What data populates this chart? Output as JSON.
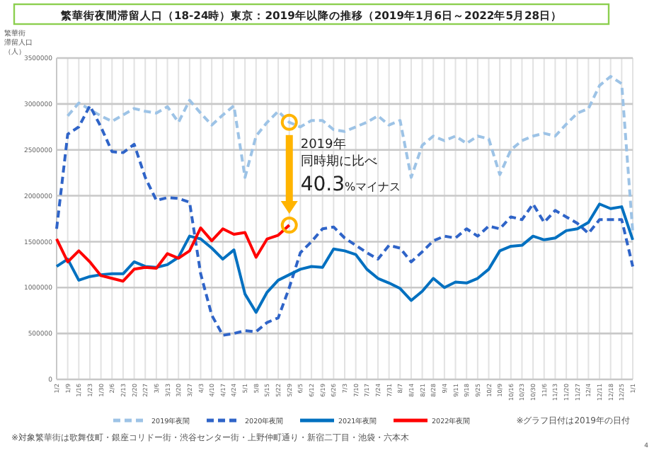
{
  "chart_data": {
    "type": "line",
    "title": "繁華街夜間滞留人口（18-24時）東京：2019年以降の推移（2019年1月6日～2022年5月28日）",
    "ylabel": "繁華街滞留人口（人）",
    "categories": [
      "1/2",
      "1/9",
      "1/16",
      "1/23",
      "1/30",
      "2/6",
      "2/13",
      "2/20",
      "2/27",
      "3/6",
      "3/13",
      "3/20",
      "3/27",
      "4/3",
      "4/10",
      "4/17",
      "4/24",
      "5/1",
      "5/8",
      "5/15",
      "5/22",
      "5/29",
      "6/5",
      "6/12",
      "6/19",
      "6/26",
      "7/3",
      "7/10",
      "7/17",
      "7/24",
      "7/31",
      "8/7",
      "8/14",
      "8/21",
      "8/28",
      "9/4",
      "9/11",
      "9/18",
      "9/25",
      "10/2",
      "10/9",
      "10/16",
      "10/23",
      "10/30",
      "11/6",
      "11/13",
      "11/20",
      "11/27",
      "12/4",
      "12/11",
      "12/18",
      "12/25",
      "1/1"
    ],
    "series": [
      {
        "name": "2019年夜間",
        "color": "#9dc3e6",
        "line_style": "dashed",
        "values": [
          null,
          2870000,
          3010000,
          2940000,
          2870000,
          2810000,
          2880000,
          2950000,
          2920000,
          2900000,
          2970000,
          2800000,
          3040000,
          2900000,
          2770000,
          2880000,
          2980000,
          2200000,
          2650000,
          2800000,
          2920000,
          2800000,
          2750000,
          2820000,
          2820000,
          2720000,
          2700000,
          2750000,
          2800000,
          2870000,
          2770000,
          2820000,
          2200000,
          2550000,
          2650000,
          2600000,
          2650000,
          2570000,
          2650000,
          2620000,
          2230000,
          2500000,
          2600000,
          2650000,
          2680000,
          2650000,
          2780000,
          2900000,
          2950000,
          3200000,
          3300000,
          3220000,
          1600000
        ]
      },
      {
        "name": "2020年夜間",
        "color": "#2f64c8",
        "line_style": "dashed",
        "values": [
          1640000,
          2670000,
          2750000,
          2980000,
          2750000,
          2480000,
          2470000,
          2560000,
          2200000,
          1950000,
          1980000,
          1970000,
          1930000,
          1150000,
          700000,
          480000,
          500000,
          530000,
          520000,
          620000,
          670000,
          1000000,
          1380000,
          1500000,
          1640000,
          1660000,
          1540000,
          1460000,
          1380000,
          1310000,
          1460000,
          1430000,
          1280000,
          1390000,
          1510000,
          1560000,
          1540000,
          1640000,
          1560000,
          1670000,
          1640000,
          1770000,
          1740000,
          1910000,
          1710000,
          1840000,
          1770000,
          1700000,
          1590000,
          1740000,
          1740000,
          1740000,
          1230000
        ]
      },
      {
        "name": "2021年夜間",
        "color": "#0070c0",
        "line_style": "solid",
        "values": [
          1230000,
          1310000,
          1080000,
          1120000,
          1140000,
          1150000,
          1150000,
          1280000,
          1230000,
          1220000,
          1250000,
          1330000,
          1560000,
          1530000,
          1430000,
          1310000,
          1410000,
          930000,
          730000,
          950000,
          1080000,
          1140000,
          1200000,
          1230000,
          1220000,
          1420000,
          1400000,
          1360000,
          1200000,
          1100000,
          1050000,
          990000,
          860000,
          960000,
          1100000,
          1000000,
          1060000,
          1050000,
          1100000,
          1200000,
          1400000,
          1450000,
          1460000,
          1560000,
          1520000,
          1540000,
          1620000,
          1640000,
          1710000,
          1910000,
          1860000,
          1880000,
          1520000
        ]
      },
      {
        "name": "2022年夜間",
        "color": "#ff0000",
        "line_style": "solid",
        "values": [
          1530000,
          1280000,
          1400000,
          1280000,
          1130000,
          1100000,
          1070000,
          1200000,
          1220000,
          1210000,
          1370000,
          1320000,
          1400000,
          1650000,
          1510000,
          1640000,
          1580000,
          1600000,
          1330000,
          1530000,
          1570000,
          1680000,
          null,
          null,
          null,
          null,
          null,
          null,
          null,
          null,
          null,
          null,
          null,
          null,
          null,
          null,
          null,
          null,
          null,
          null,
          null,
          null,
          null,
          null,
          null,
          null,
          null,
          null,
          null,
          null,
          null,
          null,
          null
        ]
      }
    ],
    "ylim": [
      0,
      3500000
    ],
    "yticks": [
      0,
      500000,
      1000000,
      1500000,
      2000000,
      2500000,
      3000000,
      3500000
    ],
    "grid": true,
    "legend": "bottom",
    "marker": "none",
    "annotations": [
      {
        "text": "2019年",
        "x": "5/29",
        "y": 2800000
      },
      "同時期に比べ",
      {
        "text": "40.3%マイナス",
        "x": "5/29",
        "y": 1680000
      },
      "※グラフ日付は2019年の日付",
      "※対象繁華街は歌舞伎町・銀座コリドー街・渋谷センター街・上野仲町通り・新宿二丁目・池袋・六本木",
      "4"
    ]
  }
}
